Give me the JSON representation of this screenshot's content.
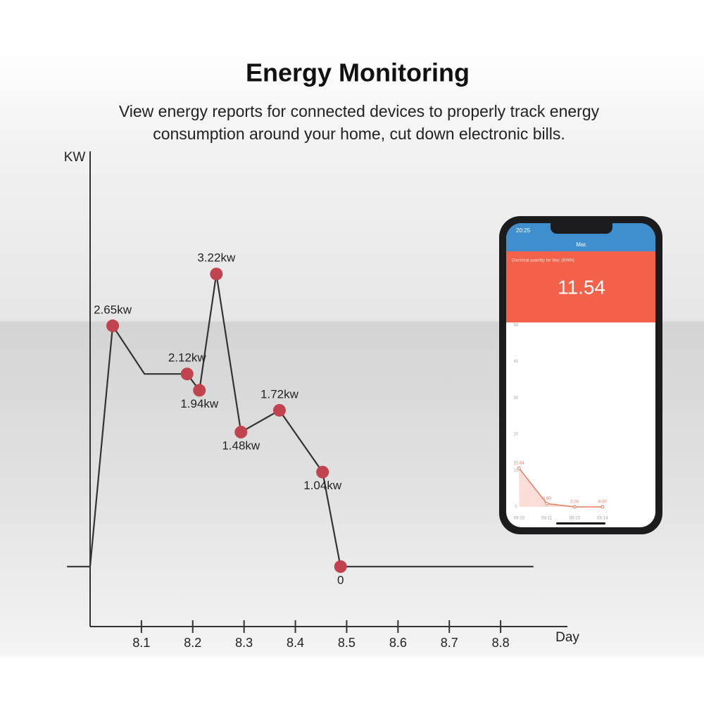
{
  "header": {
    "title": "Energy Monitoring",
    "subtitle": [
      "View energy reports for connected devices to properly track energy",
      "consumption around your  home, cut down electronic bills."
    ]
  },
  "phone": {
    "time": "20:25",
    "screen_title": "Mar.",
    "caption": "Electrical quantity for Mar. (KWH)",
    "total": "11.54"
  },
  "chart_data": [
    {
      "type": "line",
      "ylabel": "KW",
      "xlabel": "Day",
      "x": [
        7.955,
        8.0,
        8.044,
        8.106,
        8.189,
        8.213,
        8.246,
        8.294,
        8.369,
        8.453,
        8.488,
        8.864
      ],
      "series": [
        {
          "color": "#333333",
          "marker_color": "#c0434f",
          "values": [
            0,
            0,
            2.65,
            2.12,
            2.12,
            1.94,
            3.22,
            1.48,
            1.72,
            1.04,
            0,
            0
          ],
          "value_labels": [
            null,
            null,
            "2.65kw",
            null,
            "2.12kw",
            "1.94kw",
            "3.22kw",
            "1.48kw",
            "1.72kw",
            "1.04kw",
            "0",
            null
          ]
        }
      ],
      "xlim": [
        8.0,
        8.9
      ],
      "xticks": [
        8.1,
        8.2,
        8.3,
        8.4,
        8.5,
        8.6,
        8.7,
        8.8
      ],
      "ylim": [
        -0.66,
        4.57
      ]
    },
    {
      "type": "area",
      "categories": [
        "03-10",
        "03-11",
        "03-13",
        "03-14"
      ],
      "values": [
        10.64,
        0.9,
        0,
        0
      ],
      "value_labels": [
        "10.64",
        "0.90",
        "0.00",
        "0.00"
      ],
      "color": "#f07a62",
      "ylim": [
        0,
        50
      ],
      "yticks": [
        0,
        10,
        20,
        30,
        40,
        50
      ]
    }
  ]
}
